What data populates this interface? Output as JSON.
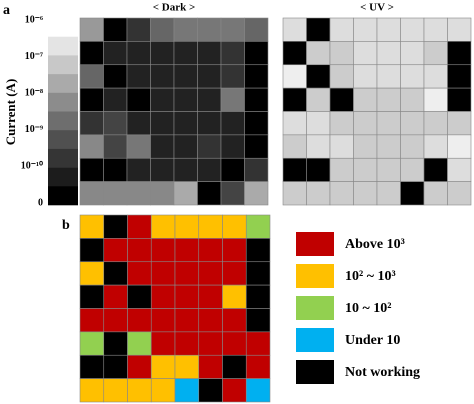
{
  "panel_a": {
    "label": "a",
    "axis_label": "Current (A)",
    "colorbar": {
      "colors": [
        "#ffffff",
        "#e4e4e4",
        "#c8c8c8",
        "#aaaaaa",
        "#8c8c8c",
        "#6e6e6e",
        "#505050",
        "#353535",
        "#1c1c1c",
        "#000000"
      ],
      "ticks": [
        "10⁻⁶",
        "10⁻⁷",
        "10⁻⁸",
        "10⁻⁹",
        "10⁻¹⁰",
        "0"
      ]
    },
    "maps": [
      {
        "title": "< Dark >",
        "colors": [
          [
            "#999",
            "#000",
            "#333",
            "#666",
            "#777",
            "#777",
            "#777",
            "#666"
          ],
          [
            "#000",
            "#222",
            "#222",
            "#222",
            "#222",
            "#222",
            "#333",
            "#000"
          ],
          [
            "#666",
            "#000",
            "#222",
            "#222",
            "#222",
            "#222",
            "#333",
            "#000"
          ],
          [
            "#000",
            "#222",
            "#000",
            "#222",
            "#222",
            "#222",
            "#777",
            "#000"
          ],
          [
            "#333",
            "#444",
            "#222",
            "#222",
            "#222",
            "#222",
            "#222",
            "#000"
          ],
          [
            "#888",
            "#444",
            "#777",
            "#222",
            "#222",
            "#333",
            "#222",
            "#000"
          ],
          [
            "#000",
            "#000",
            "#222",
            "#222",
            "#222",
            "#222",
            "#000",
            "#333"
          ],
          [
            "#888",
            "#888",
            "#888",
            "#888",
            "#aaa",
            "#000",
            "#444",
            "#aaa"
          ]
        ]
      },
      {
        "title": "< UV >",
        "colors": [
          [
            "#ddd",
            "#000",
            "#ddd",
            "#ddd",
            "#ddd",
            "#ddd",
            "#ddd",
            "#ddd"
          ],
          [
            "#000",
            "#ccc",
            "#ccc",
            "#ddd",
            "#ddd",
            "#ddd",
            "#ccc",
            "#000"
          ],
          [
            "#eee",
            "#000",
            "#ccc",
            "#ddd",
            "#ddd",
            "#ddd",
            "#ddd",
            "#000"
          ],
          [
            "#000",
            "#ccc",
            "#000",
            "#ccc",
            "#ccc",
            "#ccc",
            "#eee",
            "#000"
          ],
          [
            "#ddd",
            "#ddd",
            "#ccc",
            "#ccc",
            "#ccc",
            "#ccc",
            "#ccc",
            "#ccc"
          ],
          [
            "#ccc",
            "#ddd",
            "#ddd",
            "#ccc",
            "#ccc",
            "#ccc",
            "#ddd",
            "#eee"
          ],
          [
            "#000",
            "#000",
            "#ccc",
            "#ccc",
            "#ccc",
            "#ccc",
            "#000",
            "#ddd"
          ],
          [
            "#ccc",
            "#ccc",
            "#ccc",
            "#ccc",
            "#ccc",
            "#000",
            "#ccc",
            "#ccc"
          ]
        ]
      }
    ]
  },
  "panel_b": {
    "label": "b",
    "legend": [
      {
        "label": "Above 10³",
        "color": "#c00000"
      },
      {
        "label": "10² ~ 10³",
        "color": "#ffc000"
      },
      {
        "label": "10 ~ 10²",
        "color": "#92d050"
      },
      {
        "label": "Under 10",
        "color": "#00b0f0"
      },
      {
        "label": "Not working",
        "color": "#000000"
      }
    ],
    "grid": [
      [
        1,
        4,
        0,
        1,
        1,
        1,
        1,
        2
      ],
      [
        4,
        0,
        0,
        0,
        0,
        0,
        0,
        4
      ],
      [
        1,
        4,
        0,
        0,
        0,
        0,
        0,
        4
      ],
      [
        4,
        0,
        4,
        0,
        0,
        0,
        1,
        4
      ],
      [
        0,
        0,
        0,
        0,
        0,
        0,
        0,
        4
      ],
      [
        2,
        4,
        2,
        0,
        0,
        0,
        0,
        0
      ],
      [
        4,
        4,
        0,
        1,
        1,
        0,
        4,
        0
      ],
      [
        1,
        1,
        1,
        1,
        3,
        4,
        0,
        3
      ]
    ]
  }
}
